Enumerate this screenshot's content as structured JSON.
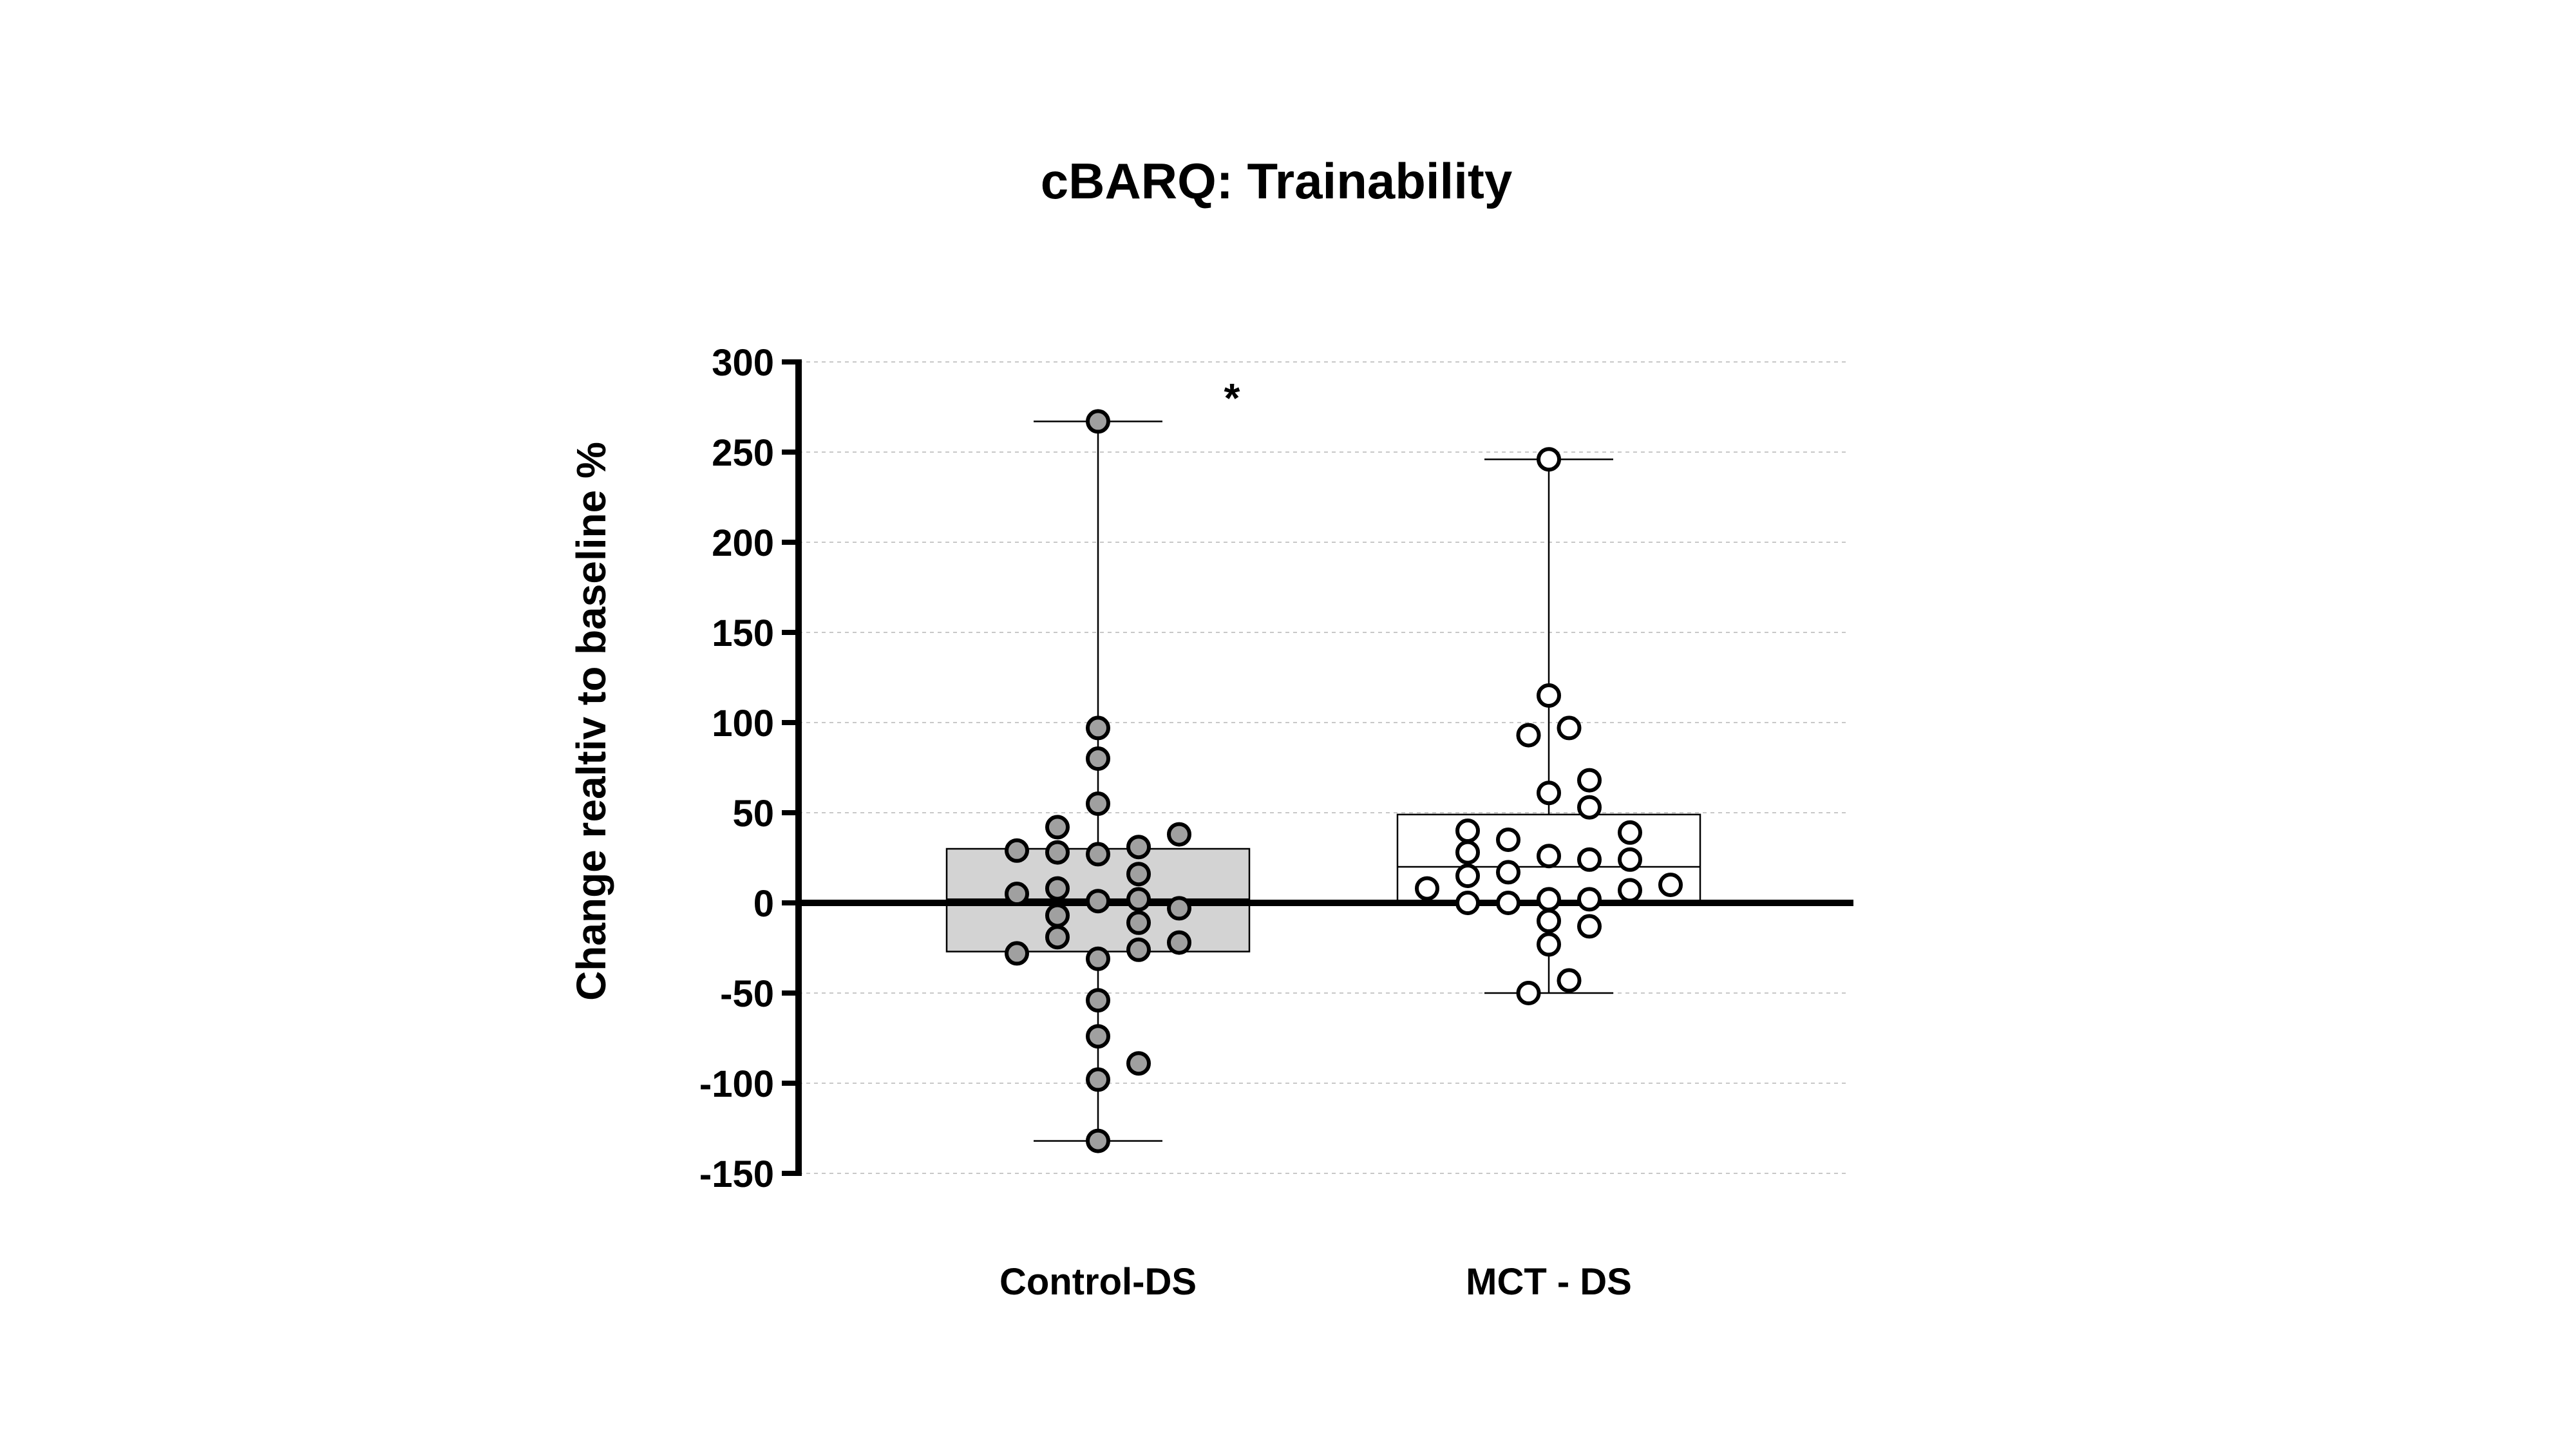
{
  "chart_data": {
    "type": "box",
    "title": "cBARQ: Trainability",
    "ylabel": "Change realtiv to baseline %",
    "xlabel": "",
    "ylim": [
      -150,
      300
    ],
    "yticks": [
      300,
      250,
      200,
      150,
      100,
      50,
      0,
      -50,
      -100,
      -150
    ],
    "grid": true,
    "annotation": "*",
    "categories": [
      "Control-DS",
      "MCT - DS"
    ],
    "colors": {
      "control_box": "#d3d3d3",
      "control_point": "#a0a0a0",
      "mct_box": "#ffffff",
      "mct_point": "#ffffff",
      "edge": "#000000"
    },
    "series": [
      {
        "name": "Control-DS",
        "box": {
          "min": -132,
          "q1": -27,
          "median": 2,
          "q3": 30,
          "max": 267
        },
        "points": [
          {
            "x": 0.0,
            "y": 267
          },
          {
            "x": 0.0,
            "y": 97
          },
          {
            "x": 0.0,
            "y": 80
          },
          {
            "x": 0.0,
            "y": 55
          },
          {
            "x": -0.09,
            "y": 42
          },
          {
            "x": 0.18,
            "y": 38
          },
          {
            "x": 0.09,
            "y": 31
          },
          {
            "x": -0.18,
            "y": 29
          },
          {
            "x": -0.09,
            "y": 28
          },
          {
            "x": 0.0,
            "y": 27
          },
          {
            "x": 0.09,
            "y": 16
          },
          {
            "x": -0.09,
            "y": 8
          },
          {
            "x": -0.18,
            "y": 5
          },
          {
            "x": 0.0,
            "y": 1
          },
          {
            "x": 0.09,
            "y": 2
          },
          {
            "x": 0.18,
            "y": -3
          },
          {
            "x": -0.09,
            "y": -7
          },
          {
            "x": 0.09,
            "y": -11
          },
          {
            "x": -0.09,
            "y": -19
          },
          {
            "x": 0.18,
            "y": -22
          },
          {
            "x": 0.09,
            "y": -26
          },
          {
            "x": -0.18,
            "y": -28
          },
          {
            "x": 0.0,
            "y": -31
          },
          {
            "x": 0.0,
            "y": -54
          },
          {
            "x": 0.0,
            "y": -74
          },
          {
            "x": 0.09,
            "y": -89
          },
          {
            "x": 0.0,
            "y": -98
          },
          {
            "x": 0.0,
            "y": -132
          }
        ]
      },
      {
        "name": "MCT - DS",
        "box": {
          "min": -50,
          "q1": 0,
          "median": 20,
          "q3": 49,
          "max": 246
        },
        "points": [
          {
            "x": 0.0,
            "y": 246
          },
          {
            "x": 0.0,
            "y": 115
          },
          {
            "x": 0.045,
            "y": 97
          },
          {
            "x": -0.045,
            "y": 93
          },
          {
            "x": 0.09,
            "y": 68
          },
          {
            "x": 0.0,
            "y": 61
          },
          {
            "x": 0.09,
            "y": 53
          },
          {
            "x": -0.18,
            "y": 40
          },
          {
            "x": 0.18,
            "y": 39
          },
          {
            "x": -0.09,
            "y": 35
          },
          {
            "x": -0.18,
            "y": 28
          },
          {
            "x": 0.0,
            "y": 26
          },
          {
            "x": 0.09,
            "y": 24
          },
          {
            "x": 0.18,
            "y": 24
          },
          {
            "x": -0.09,
            "y": 17
          },
          {
            "x": -0.18,
            "y": 15
          },
          {
            "x": 0.27,
            "y": 10
          },
          {
            "x": -0.27,
            "y": 8
          },
          {
            "x": 0.18,
            "y": 7
          },
          {
            "x": 0.0,
            "y": 2
          },
          {
            "x": 0.09,
            "y": 2
          },
          {
            "x": -0.18,
            "y": 0
          },
          {
            "x": -0.09,
            "y": 0
          },
          {
            "x": 0.0,
            "y": -10
          },
          {
            "x": 0.09,
            "y": -13
          },
          {
            "x": 0.0,
            "y": -23
          },
          {
            "x": 0.045,
            "y": -43
          },
          {
            "x": -0.045,
            "y": -50
          }
        ]
      }
    ]
  }
}
